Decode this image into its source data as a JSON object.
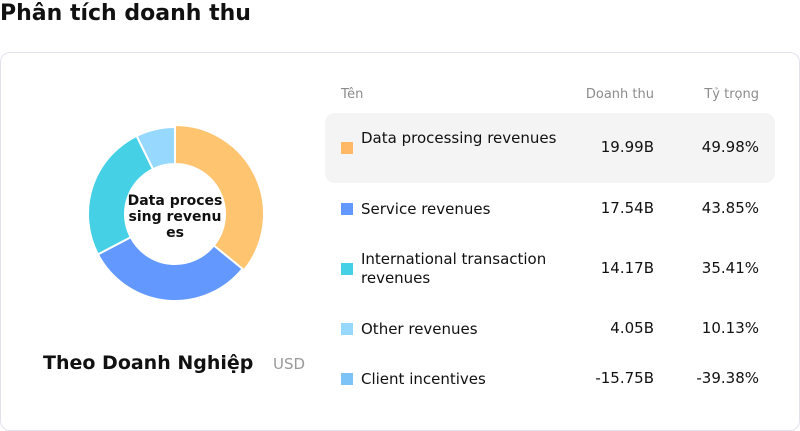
{
  "title": "Phân tích doanh thu",
  "subtitle": "Theo Doanh Nghiệp",
  "unit": "USD",
  "center_label": "Data processing revenues",
  "headers": {
    "name": "Tên",
    "revenue": "Doanh thu",
    "share": "Tỷ trọng"
  },
  "chart_data": {
    "type": "pie",
    "donut": true,
    "categories": [
      "Data processing revenues",
      "Service revenues",
      "International transaction revenues",
      "Other revenues",
      "Client incentives"
    ],
    "values": [
      19.99,
      17.54,
      14.17,
      4.05,
      -15.75
    ],
    "unit": "B USD",
    "colors": [
      "#FFC470",
      "#6399FF",
      "#45D0E6",
      "#97D8FF",
      "#7CC4F8"
    ]
  },
  "rows": [
    {
      "name": "Data processing revenues",
      "revenue": "19.99B",
      "share": "49.98%",
      "color": "#FFB866"
    },
    {
      "name": "Service revenues",
      "revenue": "17.54B",
      "share": "43.85%",
      "color": "#6399FF"
    },
    {
      "name": "International transaction revenues",
      "revenue": "14.17B",
      "share": "35.41%",
      "color": "#45D0E6"
    },
    {
      "name": "Other revenues",
      "revenue": "4.05B",
      "share": "10.13%",
      "color": "#97D8FF"
    },
    {
      "name": "Client incentives",
      "revenue": "-15.75B",
      "share": "-39.38%",
      "color": "#7CC4F8"
    }
  ]
}
